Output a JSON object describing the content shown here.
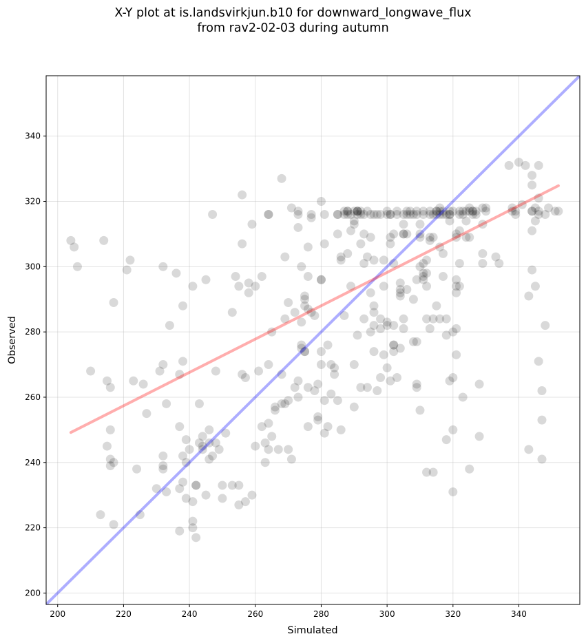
{
  "chart_data": {
    "type": "scatter",
    "title_line1": "X-Y plot at is.landsvirkjun.b10 for downward_longwave_flux",
    "title_line2": "from rav2-02-03 during autumn",
    "xlabel": "Simulated",
    "ylabel": "Observed",
    "xlim": [
      196.5,
      358.5
    ],
    "ylim": [
      196.5,
      358.5
    ],
    "xticks": [
      200,
      220,
      240,
      260,
      280,
      300,
      320,
      340
    ],
    "yticks": [
      200,
      220,
      240,
      260,
      280,
      300,
      320,
      340
    ],
    "grid": true,
    "lines": {
      "identity": {
        "color": "#0000ff",
        "x": [
          196.5,
          358.5
        ],
        "y": [
          196.5,
          358.5
        ]
      },
      "fit": {
        "color": "#ff0000",
        "x": [
          204,
          352
        ],
        "y": [
          249.2,
          324.8
        ]
      }
    },
    "point_color": "#000000",
    "points": [
      [
        204,
        308
      ],
      [
        205,
        306
      ],
      [
        206,
        300
      ],
      [
        210,
        268
      ],
      [
        213,
        224
      ],
      [
        214,
        308
      ],
      [
        215,
        265
      ],
      [
        215,
        245
      ],
      [
        216,
        263
      ],
      [
        216,
        250
      ],
      [
        216,
        241
      ],
      [
        216,
        239
      ],
      [
        217,
        240
      ],
      [
        217,
        221
      ],
      [
        217,
        289
      ],
      [
        221,
        299
      ],
      [
        222,
        302
      ],
      [
        223,
        265
      ],
      [
        224,
        238
      ],
      [
        225,
        224
      ],
      [
        226,
        264
      ],
      [
        227,
        255
      ],
      [
        230,
        232
      ],
      [
        231,
        268
      ],
      [
        232,
        300
      ],
      [
        232,
        270
      ],
      [
        232,
        242
      ],
      [
        232,
        239
      ],
      [
        232,
        238
      ],
      [
        233,
        258
      ],
      [
        233,
        231
      ],
      [
        234,
        282
      ],
      [
        236,
        298
      ],
      [
        237,
        251
      ],
      [
        237,
        232
      ],
      [
        237,
        267
      ],
      [
        237,
        219
      ],
      [
        238,
        288
      ],
      [
        238,
        271
      ],
      [
        238,
        242
      ],
      [
        238,
        234
      ],
      [
        239,
        229
      ],
      [
        239,
        247
      ],
      [
        239,
        240
      ],
      [
        240,
        244
      ],
      [
        241,
        294
      ],
      [
        241,
        228
      ],
      [
        241,
        222
      ],
      [
        241,
        220
      ],
      [
        242,
        233
      ],
      [
        242,
        233
      ],
      [
        242,
        217
      ],
      [
        243,
        258
      ],
      [
        243,
        246
      ],
      [
        244,
        245
      ],
      [
        244,
        244
      ],
      [
        244,
        248
      ],
      [
        245,
        296
      ],
      [
        245,
        230
      ],
      [
        246,
        246
      ],
      [
        246,
        241
      ],
      [
        246,
        250
      ],
      [
        247,
        242
      ],
      [
        247,
        316
      ],
      [
        248,
        268
      ],
      [
        248,
        246
      ],
      [
        249,
        244
      ],
      [
        250,
        233
      ],
      [
        250,
        229
      ],
      [
        251,
        249
      ],
      [
        253,
        286
      ],
      [
        253,
        233
      ],
      [
        254,
        297
      ],
      [
        255,
        227
      ],
      [
        255,
        233
      ],
      [
        255,
        294
      ],
      [
        256,
        307
      ],
      [
        256,
        322
      ],
      [
        256,
        267
      ],
      [
        257,
        266
      ],
      [
        257,
        228
      ],
      [
        258,
        295
      ],
      [
        258,
        292
      ],
      [
        259,
        313
      ],
      [
        259,
        230
      ],
      [
        260,
        245
      ],
      [
        260,
        294
      ],
      [
        261,
        268
      ],
      [
        262,
        251
      ],
      [
        262,
        297
      ],
      [
        263,
        246
      ],
      [
        263,
        240
      ],
      [
        264,
        316
      ],
      [
        264,
        316
      ],
      [
        264,
        252
      ],
      [
        264,
        244
      ],
      [
        264,
        270
      ],
      [
        265,
        248
      ],
      [
        265,
        280
      ],
      [
        266,
        256
      ],
      [
        266,
        257
      ],
      [
        267,
        244
      ],
      [
        268,
        258
      ],
      [
        268,
        267
      ],
      [
        268,
        327
      ],
      [
        269,
        284
      ],
      [
        269,
        303
      ],
      [
        269,
        258
      ],
      [
        270,
        289
      ],
      [
        270,
        259
      ],
      [
        270,
        244
      ],
      [
        271,
        241
      ],
      [
        271,
        318
      ],
      [
        272,
        286
      ],
      [
        272,
        263
      ],
      [
        273,
        317
      ],
      [
        273,
        316
      ],
      [
        273,
        312
      ],
      [
        273,
        260
      ],
      [
        273,
        265
      ],
      [
        274,
        283
      ],
      [
        274,
        300
      ],
      [
        274,
        276
      ],
      [
        274,
        275
      ],
      [
        275,
        274
      ],
      [
        275,
        274
      ],
      [
        275,
        290
      ],
      [
        275,
        291
      ],
      [
        275,
        288
      ],
      [
        276,
        306
      ],
      [
        276,
        287
      ],
      [
        276,
        251
      ],
      [
        276,
        263
      ],
      [
        276,
        297
      ],
      [
        277,
        315
      ],
      [
        277,
        316
      ],
      [
        277,
        286
      ],
      [
        278,
        285
      ],
      [
        278,
        262
      ],
      [
        279,
        264
      ],
      [
        279,
        253
      ],
      [
        279,
        254
      ],
      [
        280,
        274
      ],
      [
        280,
        296
      ],
      [
        280,
        296
      ],
      [
        280,
        270
      ],
      [
        280,
        320
      ],
      [
        281,
        316
      ],
      [
        281,
        307
      ],
      [
        281,
        249
      ],
      [
        281,
        259
      ],
      [
        282,
        251
      ],
      [
        282,
        276
      ],
      [
        283,
        261
      ],
      [
        283,
        270
      ],
      [
        284,
        269
      ],
      [
        284,
        267
      ],
      [
        285,
        259
      ],
      [
        285,
        316
      ],
      [
        285,
        316
      ],
      [
        285,
        310
      ],
      [
        286,
        250
      ],
      [
        286,
        303
      ],
      [
        286,
        302
      ],
      [
        287,
        285
      ],
      [
        287,
        316
      ],
      [
        287,
        317
      ],
      [
        288,
        317
      ],
      [
        288,
        317
      ],
      [
        288,
        316
      ],
      [
        288,
        304
      ],
      [
        289,
        311
      ],
      [
        289,
        294
      ],
      [
        289,
        316
      ],
      [
        290,
        313
      ],
      [
        290,
        314
      ],
      [
        290,
        270
      ],
      [
        290,
        317
      ],
      [
        290,
        257
      ],
      [
        291,
        317
      ],
      [
        291,
        317
      ],
      [
        291,
        316
      ],
      [
        291,
        317
      ],
      [
        291,
        279
      ],
      [
        292,
        316
      ],
      [
        292,
        317
      ],
      [
        292,
        307
      ],
      [
        292,
        263
      ],
      [
        293,
        310
      ],
      [
        293,
        316
      ],
      [
        293,
        284
      ],
      [
        293,
        301
      ],
      [
        294,
        303
      ],
      [
        294,
        317
      ],
      [
        294,
        263
      ],
      [
        295,
        292
      ],
      [
        295,
        280
      ],
      [
        295,
        316
      ],
      [
        295,
        309
      ],
      [
        296,
        288
      ],
      [
        296,
        302
      ],
      [
        296,
        316
      ],
      [
        296,
        286
      ],
      [
        296,
        274
      ],
      [
        296,
        282
      ],
      [
        297,
        262
      ],
      [
        297,
        316
      ],
      [
        298,
        266
      ],
      [
        298,
        281
      ],
      [
        298,
        284
      ],
      [
        298,
        316
      ],
      [
        299,
        273
      ],
      [
        299,
        302
      ],
      [
        299,
        294
      ],
      [
        300,
        283
      ],
      [
        300,
        269
      ],
      [
        300,
        317
      ],
      [
        300,
        282
      ],
      [
        300,
        316
      ],
      [
        301,
        307
      ],
      [
        301,
        309
      ],
      [
        301,
        316
      ],
      [
        301,
        265
      ],
      [
        301,
        316
      ],
      [
        302,
        282
      ],
      [
        302,
        276
      ],
      [
        302,
        276
      ],
      [
        302,
        274
      ],
      [
        302,
        301
      ],
      [
        302,
        310
      ],
      [
        303,
        316
      ],
      [
        303,
        317
      ],
      [
        303,
        266
      ],
      [
        304,
        293
      ],
      [
        304,
        275
      ],
      [
        304,
        292
      ],
      [
        304,
        295
      ],
      [
        304,
        291
      ],
      [
        305,
        313
      ],
      [
        305,
        316
      ],
      [
        305,
        310
      ],
      [
        305,
        310
      ],
      [
        305,
        281
      ],
      [
        305,
        284
      ],
      [
        306,
        316
      ],
      [
        306,
        317
      ],
      [
        306,
        310
      ],
      [
        306,
        293
      ],
      [
        307,
        317
      ],
      [
        307,
        316
      ],
      [
        308,
        316
      ],
      [
        308,
        277
      ],
      [
        308,
        290
      ],
      [
        309,
        317
      ],
      [
        309,
        316
      ],
      [
        309,
        264
      ],
      [
        309,
        277
      ],
      [
        309,
        263
      ],
      [
        309,
        296
      ],
      [
        310,
        313
      ],
      [
        310,
        310
      ],
      [
        310,
        309
      ],
      [
        310,
        300
      ],
      [
        310,
        256
      ],
      [
        311,
        301
      ],
      [
        311,
        316
      ],
      [
        311,
        317
      ],
      [
        311,
        298
      ],
      [
        311,
        296
      ],
      [
        311,
        297
      ],
      [
        312,
        302
      ],
      [
        312,
        284
      ],
      [
        312,
        237
      ],
      [
        312,
        298
      ],
      [
        312,
        294
      ],
      [
        313,
        309
      ],
      [
        313,
        316
      ],
      [
        313,
        317
      ],
      [
        313,
        308
      ],
      [
        313,
        281
      ],
      [
        314,
        316
      ],
      [
        314,
        237
      ],
      [
        314,
        284
      ],
      [
        314,
        309
      ],
      [
        315,
        317
      ],
      [
        315,
        317
      ],
      [
        315,
        316
      ],
      [
        315,
        288
      ],
      [
        316,
        284
      ],
      [
        316,
        318
      ],
      [
        316,
        316
      ],
      [
        316,
        317
      ],
      [
        316,
        306
      ],
      [
        317,
        317
      ],
      [
        317,
        316
      ],
      [
        317,
        304
      ],
      [
        317,
        297
      ],
      [
        318,
        247
      ],
      [
        318,
        284
      ],
      [
        318,
        316
      ],
      [
        318,
        279
      ],
      [
        319,
        316
      ],
      [
        319,
        317
      ],
      [
        319,
        316
      ],
      [
        319,
        265
      ],
      [
        319,
        314
      ],
      [
        320,
        231
      ],
      [
        320,
        266
      ],
      [
        320,
        250
      ],
      [
        320,
        280
      ],
      [
        320,
        317
      ],
      [
        321,
        296
      ],
      [
        321,
        294
      ],
      [
        321,
        292
      ],
      [
        321,
        273
      ],
      [
        321,
        309
      ],
      [
        321,
        310
      ],
      [
        321,
        281
      ],
      [
        322,
        311
      ],
      [
        322,
        316
      ],
      [
        322,
        317
      ],
      [
        322,
        301
      ],
      [
        322,
        294
      ],
      [
        323,
        260
      ],
      [
        323,
        317
      ],
      [
        323,
        316
      ],
      [
        324,
        317
      ],
      [
        324,
        314
      ],
      [
        324,
        309
      ],
      [
        325,
        309
      ],
      [
        325,
        238
      ],
      [
        325,
        317
      ],
      [
        325,
        318
      ],
      [
        326,
        317
      ],
      [
        326,
        316
      ],
      [
        326,
        317
      ],
      [
        327,
        317
      ],
      [
        327,
        316
      ],
      [
        328,
        248
      ],
      [
        328,
        264
      ],
      [
        329,
        301
      ],
      [
        329,
        304
      ],
      [
        329,
        313
      ],
      [
        329,
        318
      ],
      [
        330,
        317
      ],
      [
        330,
        318
      ],
      [
        333,
        303
      ],
      [
        334,
        301
      ],
      [
        337,
        331
      ],
      [
        338,
        317
      ],
      [
        338,
        318
      ],
      [
        339,
        317
      ],
      [
        339,
        316
      ],
      [
        340,
        332
      ],
      [
        341,
        319
      ],
      [
        342,
        331
      ],
      [
        343,
        244
      ],
      [
        343,
        291
      ],
      [
        344,
        299
      ],
      [
        344,
        317
      ],
      [
        344,
        325
      ],
      [
        344,
        328
      ],
      [
        344,
        317
      ],
      [
        344,
        311
      ],
      [
        345,
        294
      ],
      [
        345,
        314
      ],
      [
        345,
        318
      ],
      [
        346,
        331
      ],
      [
        346,
        317
      ],
      [
        346,
        316
      ],
      [
        346,
        321
      ],
      [
        346,
        271
      ],
      [
        347,
        262
      ],
      [
        347,
        241
      ],
      [
        347,
        253
      ],
      [
        348,
        282
      ],
      [
        348,
        316
      ],
      [
        349,
        318
      ],
      [
        351,
        317
      ],
      [
        352,
        317
      ]
    ]
  }
}
